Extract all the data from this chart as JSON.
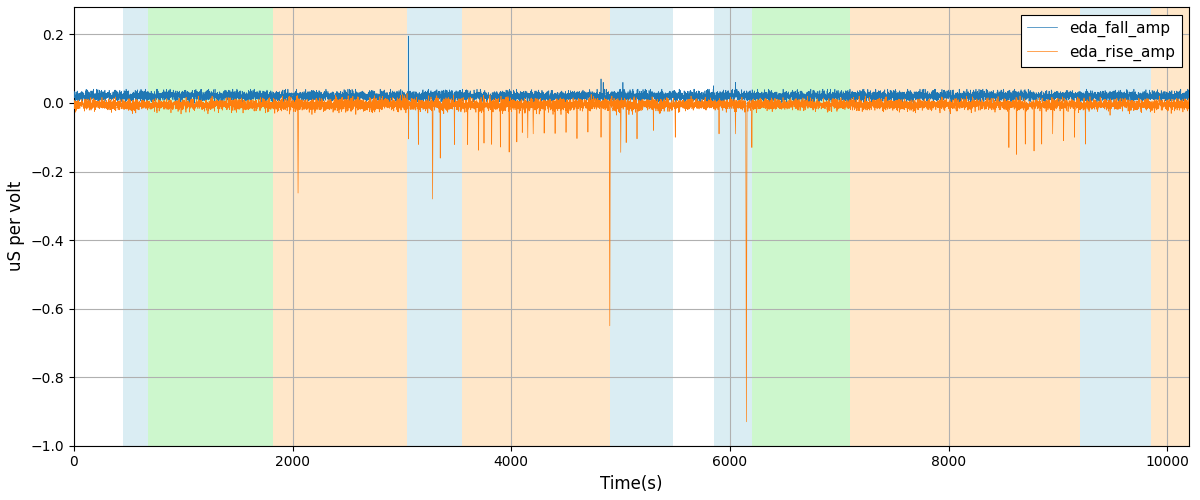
{
  "xlabel": "Time(s)",
  "ylabel": "uS per volt",
  "xlim": [
    0,
    10200
  ],
  "ylim": [
    -1.0,
    0.28
  ],
  "line1_label": "eda_fall_amp",
  "line2_label": "eda_rise_amp",
  "line1_color": "#1f77b4",
  "line2_color": "#ff7f0e",
  "bg_regions": [
    {
      "xstart": 450,
      "xend": 680,
      "color": "#add8e6",
      "alpha": 0.45
    },
    {
      "xstart": 680,
      "xend": 1820,
      "color": "#90ee90",
      "alpha": 0.45
    },
    {
      "xstart": 1820,
      "xend": 3050,
      "color": "#ffd59e",
      "alpha": 0.55
    },
    {
      "xstart": 3050,
      "xend": 3550,
      "color": "#add8e6",
      "alpha": 0.45
    },
    {
      "xstart": 3550,
      "xend": 4900,
      "color": "#ffd59e",
      "alpha": 0.55
    },
    {
      "xstart": 4900,
      "xend": 5480,
      "color": "#add8e6",
      "alpha": 0.45
    },
    {
      "xstart": 5850,
      "xend": 6200,
      "color": "#add8e6",
      "alpha": 0.45
    },
    {
      "xstart": 6200,
      "xend": 7100,
      "color": "#90ee90",
      "alpha": 0.45
    },
    {
      "xstart": 7100,
      "xend": 9200,
      "color": "#ffd59e",
      "alpha": 0.55
    },
    {
      "xstart": 9200,
      "xend": 9850,
      "color": "#add8e6",
      "alpha": 0.45
    },
    {
      "xstart": 9850,
      "xend": 10200,
      "color": "#ffd59e",
      "alpha": 0.55
    }
  ],
  "grid_color": "#b0b0b0",
  "grid_linewidth": 0.8,
  "figsize": [
    12.0,
    5.0
  ],
  "dpi": 100,
  "seed": 42,
  "num_points": 10200
}
